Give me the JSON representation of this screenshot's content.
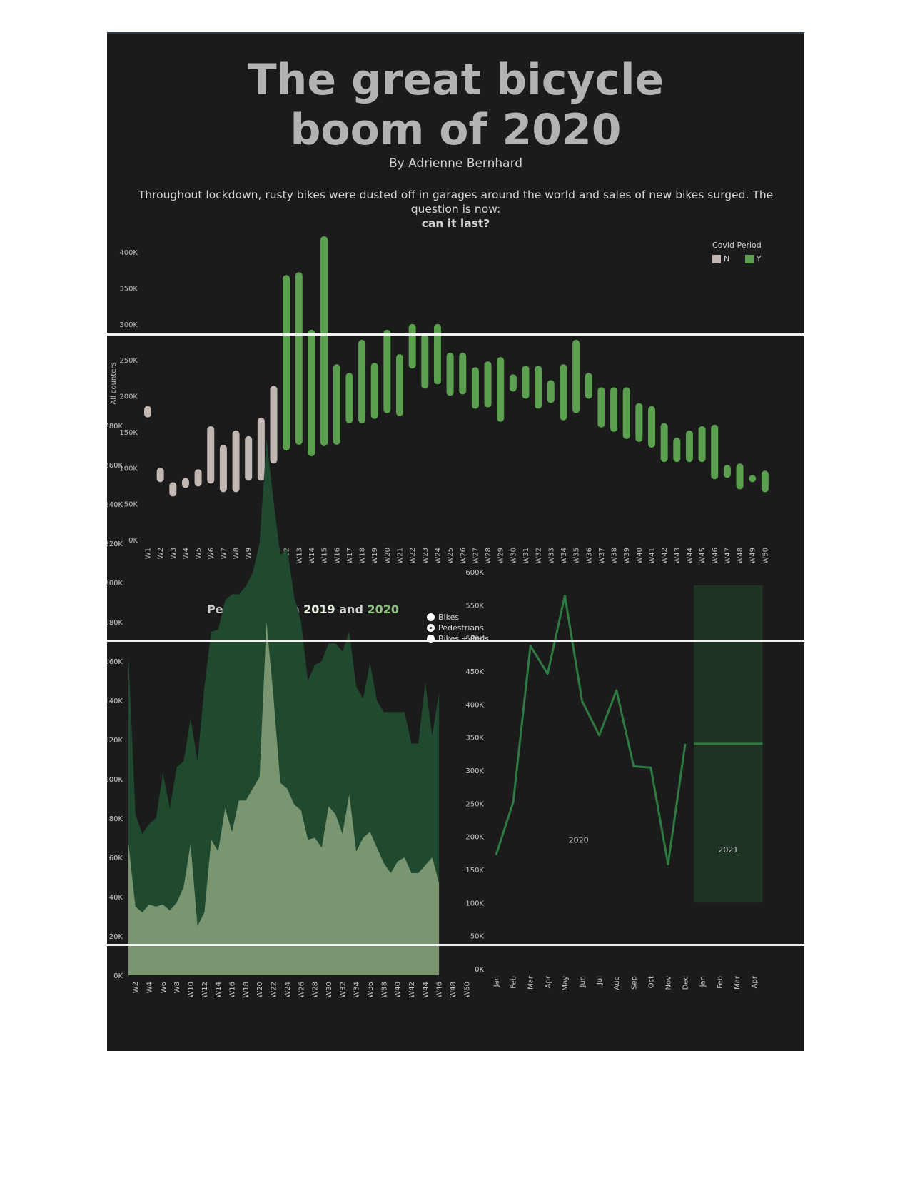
{
  "header": {
    "title_line1": "The great bicycle",
    "title_line2": "boom of 2020",
    "byline": "By Adrienne Bernhard",
    "intro": "Throughout lockdown, rusty bikes were dusted off in garages around the world and sales of new bikes surged. The question is now:",
    "intro_bold": "can it last?"
  },
  "legend": {
    "title": "Covid Period",
    "items": [
      {
        "label": "N",
        "color": "#c2b8b3"
      },
      {
        "label": "Y",
        "color": "#5aa04f"
      }
    ]
  },
  "pedestrians": {
    "title_prefix": "Pedestrians in ",
    "year1": "2019",
    "title_mid": " and ",
    "year2": "2020"
  },
  "radios": [
    {
      "label": "Bikes",
      "selected": false
    },
    {
      "label": "Pedestrians",
      "selected": true
    },
    {
      "label": "Bikes + Peds",
      "selected": false
    }
  ],
  "colors": {
    "background": "#1b1b1b",
    "covid_n": "#c2b8b3",
    "covid_y": "#5aa04f",
    "area_2020": "#204a2f",
    "area_2019": "#7a9670",
    "line": "#2e7a43",
    "band": "#1f3324"
  },
  "chart_data": [
    {
      "type": "bar",
      "subtype": "range",
      "ylabel": "All counters",
      "ylim": [
        0,
        430000
      ],
      "yticks": [
        0,
        50000,
        100000,
        150000,
        200000,
        250000,
        300000,
        350000,
        400000
      ],
      "ytick_labels": [
        "0K",
        "50K",
        "100K",
        "150K",
        "200K",
        "250K",
        "300K",
        "350K",
        "400K"
      ],
      "legend_position": "top-right",
      "categories": [
        "W1",
        "W2",
        "W3",
        "W4",
        "W5",
        "W6",
        "W7",
        "W8",
        "W9",
        "W10",
        "W11",
        "W12",
        "W13",
        "W14",
        "W15",
        "W16",
        "W17",
        "W18",
        "W19",
        "W20",
        "W21",
        "W22",
        "W23",
        "W24",
        "W25",
        "W26",
        "W27",
        "W28",
        "W29",
        "W30",
        "W31",
        "W32",
        "W33",
        "W34",
        "W35",
        "W36",
        "W37",
        "W38",
        "W39",
        "W40",
        "W41",
        "W42",
        "W43",
        "W44",
        "W45",
        "W46",
        "W47",
        "W48",
        "W49",
        "W50"
      ],
      "low": [
        170000,
        80000,
        60000,
        72000,
        74000,
        78000,
        66000,
        66000,
        82000,
        82000,
        106000,
        124000,
        132000,
        116000,
        130000,
        132000,
        162000,
        162000,
        168000,
        176000,
        172000,
        238000,
        210000,
        216000,
        200000,
        202000,
        182000,
        184000,
        164000,
        206000,
        196000,
        182000,
        190000,
        166000,
        176000,
        196000,
        156000,
        150000,
        140000,
        136000,
        128000,
        108000,
        108000,
        108000,
        108000,
        84000,
        86000,
        70000,
        80000,
        66000
      ],
      "high": [
        186000,
        100000,
        80000,
        86000,
        98000,
        158000,
        132000,
        152000,
        144000,
        170000,
        214000,
        368000,
        372000,
        292000,
        422000,
        244000,
        232000,
        278000,
        246000,
        292000,
        258000,
        300000,
        286000,
        300000,
        260000,
        260000,
        240000,
        248000,
        254000,
        230000,
        242000,
        242000,
        222000,
        244000,
        278000,
        232000,
        212000,
        212000,
        212000,
        190000,
        186000,
        162000,
        142000,
        152000,
        158000,
        160000,
        104000,
        106000,
        90000,
        96000
      ],
      "covid": [
        "N",
        "N",
        "N",
        "N",
        "N",
        "N",
        "N",
        "N",
        "N",
        "N",
        "N",
        "Y",
        "Y",
        "Y",
        "Y",
        "Y",
        "Y",
        "Y",
        "Y",
        "Y",
        "Y",
        "Y",
        "Y",
        "Y",
        "Y",
        "Y",
        "Y",
        "Y",
        "Y",
        "Y",
        "Y",
        "Y",
        "Y",
        "Y",
        "Y",
        "Y",
        "Y",
        "Y",
        "Y",
        "Y",
        "Y",
        "Y",
        "Y",
        "Y",
        "Y",
        "Y",
        "Y",
        "Y",
        "Y",
        "Y"
      ]
    },
    {
      "type": "area",
      "title": "Pedestrians in 2019 and 2020",
      "ylim": [
        0,
        280000
      ],
      "yticks": [
        0,
        20000,
        40000,
        60000,
        80000,
        100000,
        120000,
        140000,
        160000,
        180000,
        200000,
        220000,
        240000,
        260000,
        280000
      ],
      "ytick_labels": [
        "0K",
        "20K",
        "40K",
        "60K",
        "80K",
        "100K",
        "120K",
        "140K",
        "160K",
        "180K",
        "200K",
        "220K",
        "240K",
        "260K",
        "280K"
      ],
      "x_tick_labels": [
        "W2",
        "W4",
        "W6",
        "W8",
        "W10",
        "W12",
        "W14",
        "W16",
        "W18",
        "W20",
        "W22",
        "W24",
        "W26",
        "W28",
        "W30",
        "W32",
        "W34",
        "W36",
        "W38",
        "W40",
        "W42",
        "W44",
        "W46",
        "W48",
        "W50"
      ],
      "x": [
        1,
        2,
        3,
        4,
        5,
        6,
        7,
        8,
        9,
        10,
        11,
        12,
        13,
        14,
        15,
        16,
        17,
        18,
        19,
        20,
        21,
        22,
        23,
        24,
        25,
        26,
        27,
        28,
        29,
        30,
        31,
        32,
        33,
        34,
        35,
        36,
        37,
        38,
        39,
        40,
        41,
        42,
        43,
        44,
        45,
        46
      ],
      "series": [
        {
          "name": "2020",
          "values": [
            163000,
            82000,
            72000,
            77000,
            80000,
            103000,
            85000,
            106000,
            109000,
            131000,
            109000,
            147000,
            175000,
            176000,
            191000,
            194000,
            194000,
            198000,
            205000,
            220000,
            273000,
            242000,
            214000,
            217000,
            193000,
            180000,
            150000,
            158000,
            160000,
            169000,
            169000,
            165000,
            175000,
            147000,
            141000,
            159000,
            140000,
            134000,
            134000,
            134000,
            134000,
            118000,
            118000,
            149000,
            122000,
            144000
          ]
        },
        {
          "name": "2019",
          "values": [
            67000,
            35000,
            32000,
            36000,
            35000,
            36000,
            33000,
            37000,
            45000,
            67000,
            25000,
            32000,
            69000,
            63000,
            85000,
            73000,
            89000,
            89000,
            95000,
            101000,
            180000,
            142000,
            98000,
            95000,
            87000,
            84000,
            69000,
            70000,
            65000,
            86000,
            82000,
            72000,
            92000,
            63000,
            70000,
            73000,
            65000,
            57000,
            52000,
            58000,
            60000,
            52000,
            52000,
            56000,
            60000,
            47000
          ]
        }
      ]
    },
    {
      "type": "line",
      "ylim": [
        0,
        600000
      ],
      "yticks": [
        0,
        50000,
        100000,
        150000,
        200000,
        250000,
        300000,
        350000,
        400000,
        450000,
        500000,
        550000,
        600000
      ],
      "ytick_labels": [
        "0K",
        "50K",
        "100K",
        "150K",
        "200K",
        "250K",
        "300K",
        "350K",
        "400K",
        "450K",
        "500K",
        "550K",
        "600K"
      ],
      "x_tick_labels": [
        "Jan",
        "Feb",
        "Mar",
        "Apr",
        "May",
        "Jun",
        "Jul",
        "Aug",
        "Sep",
        "Oct",
        "Nov",
        "Dec",
        "Jan",
        "Feb",
        "Mar",
        "Apr"
      ],
      "annotations": [
        "2020",
        "2021"
      ],
      "series": [
        {
          "name": "2020",
          "x": [
            "Jan",
            "Feb",
            "Mar",
            "Apr",
            "May",
            "Jun",
            "Jul",
            "Aug",
            "Sep",
            "Oct",
            "Nov",
            "Dec"
          ],
          "values": [
            172000,
            252000,
            488000,
            446000,
            564000,
            405000,
            353000,
            421000,
            306000,
            304000,
            158000,
            340000
          ]
        },
        {
          "name": "2021",
          "x": [
            "Jan",
            "Feb",
            "Mar",
            "Apr"
          ],
          "values": [
            340000,
            340000,
            340000,
            340000
          ]
        }
      ]
    }
  ]
}
